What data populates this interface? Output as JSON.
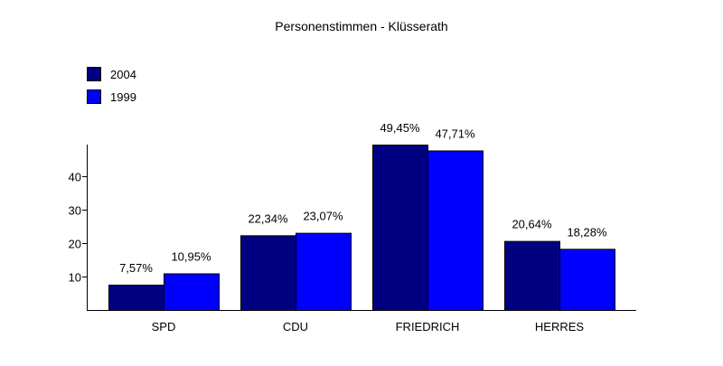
{
  "chart_data": {
    "type": "bar",
    "title": "Personenstimmen - Klüsserath",
    "categories": [
      "SPD",
      "CDU",
      "FRIEDRICH",
      "HERRES"
    ],
    "series": [
      {
        "name": "2004",
        "color": "#000080",
        "values": [
          7.57,
          22.34,
          49.45,
          20.64
        ],
        "labels": [
          "7,57%",
          "22,34%",
          "49,45%",
          "20,64%"
        ]
      },
      {
        "name": "1999",
        "color": "#0000ff",
        "values": [
          10.95,
          23.07,
          47.71,
          18.28
        ],
        "labels": [
          "10,95%",
          "23,07%",
          "47,71%",
          "18,28%"
        ]
      }
    ],
    "yticks": [
      10,
      20,
      30,
      40
    ],
    "ylim": [
      0,
      49.45
    ],
    "xlabel": "",
    "ylabel": "",
    "grid": false,
    "legend": "top-left"
  }
}
